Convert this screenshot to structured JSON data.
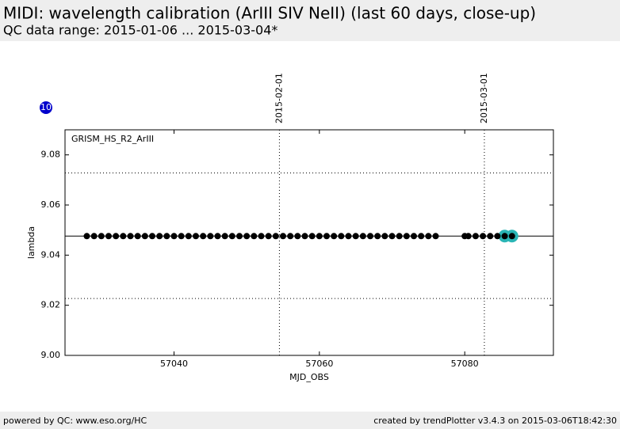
{
  "header": {
    "title": "MIDI: wavelength calibration (ArIII SIV NeII) (last 60 days, close-up)",
    "subtitle": "QC data range: 2015-01-06 ... 2015-03-04*"
  },
  "badge": "10",
  "footer": {
    "left": "powered by QC: www.eso.org/HC",
    "right": "created by trendPlotter v3.4.3 on 2015-03-06T18:42:30"
  },
  "chart_data": {
    "type": "scatter",
    "annotation": "GRISM_HS_R2_ArIII",
    "x_label": "MJD_OBS",
    "y_label": "lambda",
    "xlim": [
      57025,
      57092.2
    ],
    "ylim": [
      9.0,
      9.09
    ],
    "xticks": [
      57040,
      57060,
      57080
    ],
    "yticks": [
      {
        "value": 9,
        "label": "9.00"
      },
      9.02,
      9.04,
      9.06,
      9.08
    ],
    "reference_lines": {
      "mean": 9.0476,
      "limits": [
        9.0227,
        9.0728
      ]
    },
    "date_markers": [
      {
        "value": 57054.5,
        "label": "2015-02-01"
      },
      {
        "value": 57082.7,
        "label": "2015-03-01"
      }
    ],
    "series": [
      {
        "color": "#2ab5b5",
        "size": 8,
        "x": [
          57085.5,
          57086.5
        ],
        "values": [
          9.0476,
          9.0476
        ]
      },
      {
        "color": "#000000",
        "size": 4,
        "x": [
          57028,
          57029,
          57030,
          57031,
          57032,
          57033,
          57034,
          57035,
          57036,
          57037,
          57038,
          57039,
          57040,
          57041,
          57042,
          57043,
          57044,
          57045,
          57046,
          57047,
          57048,
          57049,
          57050,
          57051,
          57052,
          57053,
          57054,
          57055,
          57056,
          57057,
          57058,
          57059,
          57060,
          57061,
          57062,
          57063,
          57064,
          57065,
          57066,
          57067,
          57068,
          57069,
          57070,
          57071,
          57072,
          57073,
          57074,
          57075,
          57076,
          57080,
          57080.5,
          57081.5,
          57082.5,
          57083.5,
          57084.5,
          57085.5,
          57086.5
        ],
        "values": [
          9.0476,
          9.0476,
          9.0476,
          9.0476,
          9.0476,
          9.0476,
          9.0476,
          9.0476,
          9.0476,
          9.0476,
          9.0476,
          9.0476,
          9.0476,
          9.0476,
          9.0476,
          9.0476,
          9.0476,
          9.0476,
          9.0476,
          9.0476,
          9.0476,
          9.0476,
          9.0476,
          9.0476,
          9.0476,
          9.0476,
          9.0476,
          9.0476,
          9.0476,
          9.0476,
          9.0476,
          9.0476,
          9.0476,
          9.0476,
          9.0476,
          9.0476,
          9.0476,
          9.0476,
          9.0476,
          9.0476,
          9.0476,
          9.0476,
          9.0476,
          9.0476,
          9.0476,
          9.0476,
          9.0476,
          9.0476,
          9.0476,
          9.0476,
          9.0476,
          9.0476,
          9.0476,
          9.0476,
          9.0476,
          9.0476,
          9.0476
        ]
      }
    ]
  }
}
